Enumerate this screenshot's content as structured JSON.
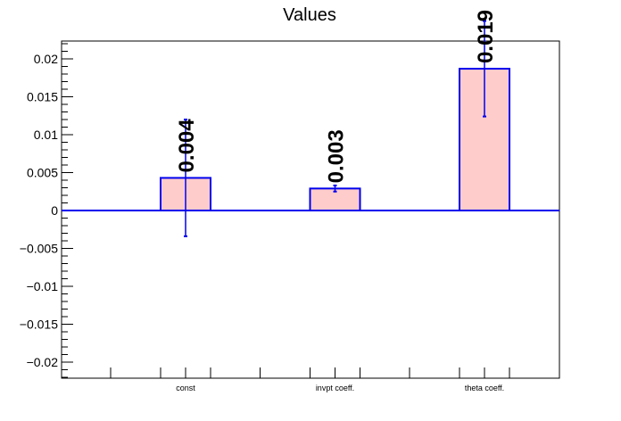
{
  "chart_data": {
    "type": "bar",
    "title": "Values",
    "xlabel": "",
    "ylabel": "",
    "categories": [
      "const",
      "invpt coeff.",
      "theta coeff."
    ],
    "values": [
      0.0043,
      0.0029,
      0.0187
    ],
    "errors": [
      0.0077,
      0.0004,
      0.0063
    ],
    "data_labels": [
      "0.004",
      "0.003",
      "0.019"
    ],
    "ylim": [
      -0.022,
      0.022
    ],
    "y_ticks": [
      {
        "value": 0.02,
        "label": "0.02"
      },
      {
        "value": 0.015,
        "label": "0.015"
      },
      {
        "value": 0.01,
        "label": "0.01"
      },
      {
        "value": 0.005,
        "label": "0.005"
      },
      {
        "value": 0,
        "label": "0"
      },
      {
        "value": -0.005,
        "label": "−0.005"
      },
      {
        "value": -0.01,
        "label": "−0.01"
      },
      {
        "value": -0.015,
        "label": "−0.015"
      },
      {
        "value": -0.02,
        "label": "−0.02"
      }
    ],
    "grid": false,
    "colors": {
      "bar_fill": "#ffcccc",
      "bar_stroke": "#0000ee",
      "error_bar": "#0000ee",
      "zero_line": "#0000ee",
      "axis": "#000000"
    }
  }
}
